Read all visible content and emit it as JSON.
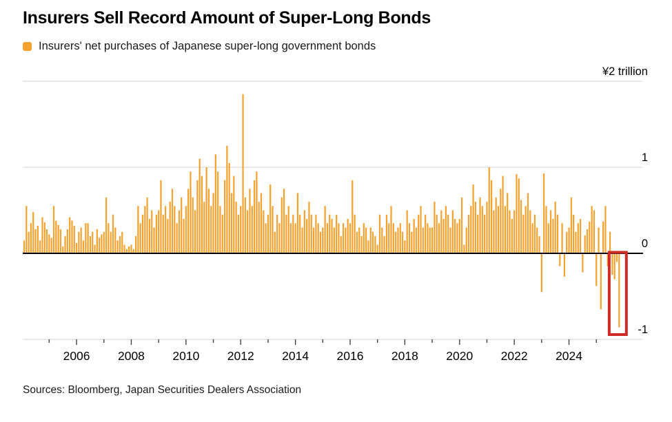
{
  "title": "Insurers Sell Record Amount of Super-Long Bonds",
  "legend": {
    "label": "Insurers' net purchases of Japanese super-long government bonds",
    "swatch_color": "#F5A12E"
  },
  "source": "Sources: Bloomberg, Japan Securities Dealers Association",
  "chart_data": {
    "type": "bar",
    "title": "Insurers Sell Record Amount of Super-Long Bonds",
    "subtitle": "Insurers' net purchases of Japanese super-long government bonds",
    "unit_label": "¥2 trillion",
    "bar_color": "#F5A12E",
    "grid_color": "#D9D9D9",
    "zero_line_color": "#000000",
    "tick_color": "#444444",
    "text_color": "#000000",
    "ylim": [
      -1,
      2
    ],
    "grid": "horizontal",
    "legend_position": "top-left",
    "y_axis": {
      "side": "right",
      "ticks": [
        {
          "label": "¥2 trillion",
          "value": 2
        },
        {
          "label": "1",
          "value": 1
        },
        {
          "label": "0",
          "value": 0
        },
        {
          "label": "-1",
          "value": -1
        }
      ]
    },
    "x_axis": {
      "labeled_years": [
        2006,
        2008,
        2010,
        2012,
        2014,
        2016,
        2018,
        2020,
        2022,
        2024
      ],
      "minor_tick_years_range": [
        2005,
        2025
      ]
    },
    "series_start": "2004-02",
    "frequency": "monthly",
    "values": [
      0.15,
      0.55,
      0.25,
      0.35,
      0.48,
      0.28,
      0.32,
      0.15,
      0.42,
      0.36,
      0.28,
      0.22,
      0.18,
      0.55,
      0.38,
      0.33,
      0.28,
      0.08,
      0.2,
      0.28,
      0.42,
      0.38,
      0.32,
      0.12,
      0.25,
      0.3,
      0.15,
      0.35,
      0.35,
      0.2,
      0.25,
      0.1,
      0.28,
      0.18,
      0.22,
      0.25,
      0.65,
      0.35,
      0.25,
      0.45,
      0.3,
      0.15,
      0.2,
      0.25,
      0.1,
      0.05,
      0.08,
      0.1,
      0.05,
      0.2,
      0.55,
      0.35,
      0.45,
      0.55,
      0.65,
      0.4,
      0.5,
      0.3,
      0.45,
      0.5,
      0.85,
      0.45,
      0.55,
      0.4,
      0.6,
      0.75,
      0.55,
      0.35,
      0.5,
      0.65,
      0.4,
      0.55,
      0.75,
      0.95,
      0.65,
      0.5,
      0.85,
      1.1,
      0.9,
      0.6,
      1.0,
      0.75,
      0.55,
      0.7,
      1.15,
      0.95,
      0.55,
      0.45,
      0.85,
      1.25,
      1.05,
      0.7,
      0.9,
      0.6,
      0.45,
      0.55,
      1.85,
      0.65,
      0.5,
      0.75,
      0.55,
      0.85,
      0.95,
      0.6,
      0.7,
      0.5,
      0.35,
      0.45,
      0.8,
      0.55,
      0.25,
      0.45,
      0.35,
      0.65,
      0.75,
      0.45,
      0.55,
      0.35,
      0.45,
      0.35,
      0.7,
      0.45,
      0.3,
      0.5,
      0.4,
      0.6,
      0.45,
      0.3,
      0.45,
      0.35,
      0.25,
      0.3,
      0.55,
      0.35,
      0.45,
      0.4,
      0.3,
      0.45,
      0.35,
      0.2,
      0.35,
      0.3,
      0.4,
      0.35,
      0.85,
      0.45,
      0.25,
      0.3,
      0.2,
      0.35,
      0.3,
      0.15,
      0.3,
      0.25,
      0.2,
      0.1,
      0.45,
      0.3,
      0.2,
      0.45,
      0.35,
      0.55,
      0.35,
      0.25,
      0.3,
      0.35,
      0.25,
      0.15,
      0.5,
      0.35,
      0.25,
      0.4,
      0.3,
      0.45,
      0.55,
      0.3,
      0.45,
      0.35,
      0.3,
      0.3,
      0.6,
      0.45,
      0.35,
      0.5,
      0.4,
      0.55,
      0.45,
      0.3,
      0.5,
      0.4,
      0.35,
      0.4,
      0.65,
      0.1,
      0.3,
      0.45,
      0.55,
      0.8,
      0.6,
      0.45,
      0.65,
      0.55,
      0.45,
      0.6,
      1.0,
      0.85,
      0.5,
      0.65,
      0.55,
      0.75,
      0.9,
      0.55,
      0.7,
      0.5,
      0.4,
      0.5,
      0.92,
      0.87,
      0.62,
      0.45,
      0.55,
      0.7,
      0.5,
      0.35,
      0.45,
      0.3,
      0.2,
      -0.45,
      0.93,
      0.55,
      0.35,
      0.5,
      0.4,
      0.6,
      0.45,
      -0.15,
      0.35,
      -0.27,
      0.25,
      0.3,
      0.65,
      0.45,
      0.25,
      0.35,
      0.4,
      -0.22,
      0.21,
      0.28,
      0.37,
      0.55,
      0.5,
      -0.38,
      0.3,
      -0.65,
      0.37,
      0.55,
      -0.15,
      0.25,
      -0.25,
      -0.3,
      -0.1,
      -0.86
    ],
    "highlight": {
      "type": "box",
      "last_n_bars": 4,
      "color": "#CE2B26",
      "meaning": "record net selling highlighted"
    }
  }
}
